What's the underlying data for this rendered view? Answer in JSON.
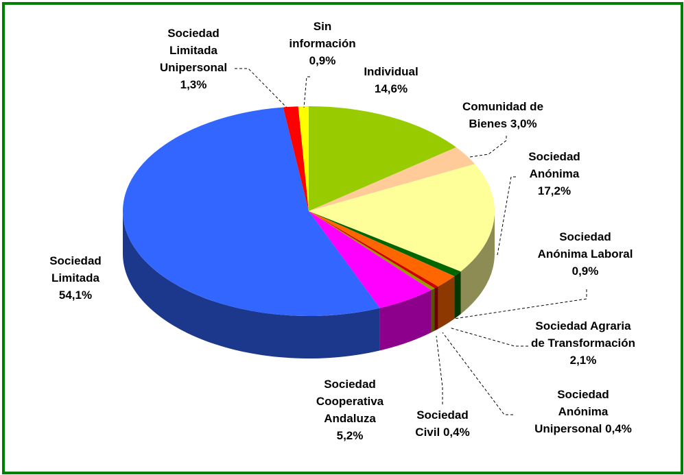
{
  "chart_data": {
    "type": "pie",
    "categories": [
      "Individual",
      "Comunidad de Bienes",
      "Sociedad Anónima",
      "Sociedad Anónima Laboral",
      "Sociedad Agraria de Transformación",
      "Sociedad Anónima Unipersonal",
      "Sociedad Civil",
      "Sociedad Cooperativa Andaluza",
      "Sociedad Limitada",
      "Sociedad Limitada Unipersonal",
      "Sin información"
    ],
    "values": [
      14.6,
      3.0,
      17.2,
      0.9,
      2.1,
      0.4,
      0.4,
      5.2,
      54.1,
      1.3,
      0.9
    ],
    "value_labels": [
      "14,6%",
      "3,0%",
      "17,2%",
      "0,9%",
      "2,1%",
      "0,4%",
      "0,4%",
      "5,2%",
      "54,1%",
      "1,3%",
      "0,9%"
    ],
    "colors": [
      "#99cc00",
      "#ffcc99",
      "#ffff99",
      "#006600",
      "#ff6600",
      "#cc0000",
      "#999900",
      "#ff00ff",
      "#3366ff",
      "#ff0000",
      "#ffff00"
    ]
  }
}
